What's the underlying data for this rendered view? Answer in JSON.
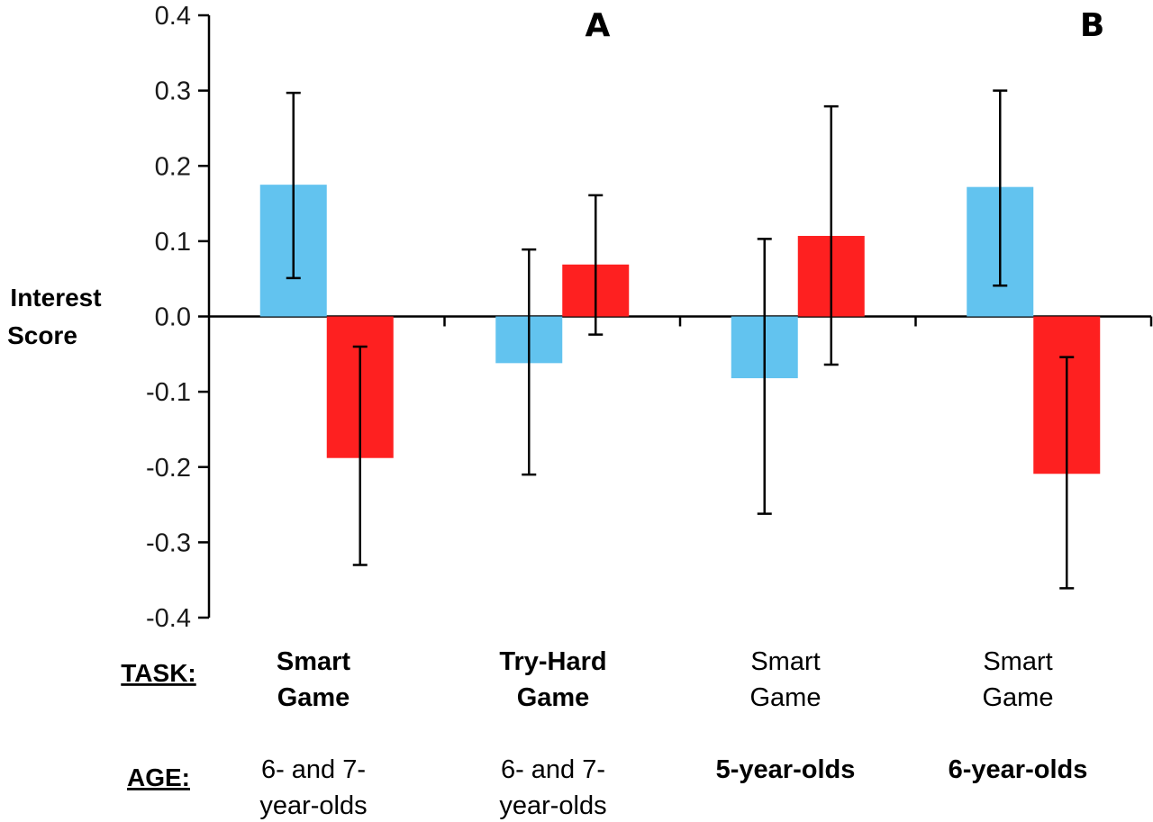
{
  "chart_data": {
    "type": "bar",
    "ylabel": "Interest Score",
    "ylim": [
      -0.4,
      0.4
    ],
    "yticks": [
      "0.4",
      "0.3",
      "0.2",
      "0.1",
      "0.0",
      "-0.1",
      "-0.2",
      "-0.3",
      "-0.4"
    ],
    "panel_labels": [
      "A",
      "B"
    ],
    "row_headers": {
      "task": "TASK:",
      "age": "AGE:"
    },
    "categories": [
      {
        "task": [
          "Smart",
          "Game"
        ],
        "task_bold": true,
        "age": [
          "6- and 7-",
          "year-olds"
        ],
        "age_bold": false
      },
      {
        "task": [
          "Try-Hard",
          "Game"
        ],
        "task_bold": true,
        "age": [
          "6- and 7-",
          "year-olds"
        ],
        "age_bold": false
      },
      {
        "task": [
          "Smart",
          "Game"
        ],
        "task_bold": false,
        "age": [
          "5-year-olds"
        ],
        "age_bold": true
      },
      {
        "task": [
          "Smart",
          "Game"
        ],
        "task_bold": false,
        "age": [
          "6-year-olds"
        ],
        "age_bold": true
      }
    ],
    "series": [
      {
        "color": "#62c3ef",
        "values": [
          0.175,
          -0.062,
          -0.082,
          0.172
        ],
        "err_low": [
          0.051,
          -0.21,
          -0.262,
          0.041
        ],
        "err_high": [
          0.297,
          0.089,
          0.103,
          0.3
        ]
      },
      {
        "color": "#fe2020",
        "values": [
          -0.188,
          0.069,
          0.107,
          -0.209
        ],
        "err_low": [
          -0.33,
          -0.024,
          -0.064,
          -0.361
        ],
        "err_high": [
          -0.04,
          0.161,
          0.279,
          -0.054
        ]
      }
    ]
  }
}
